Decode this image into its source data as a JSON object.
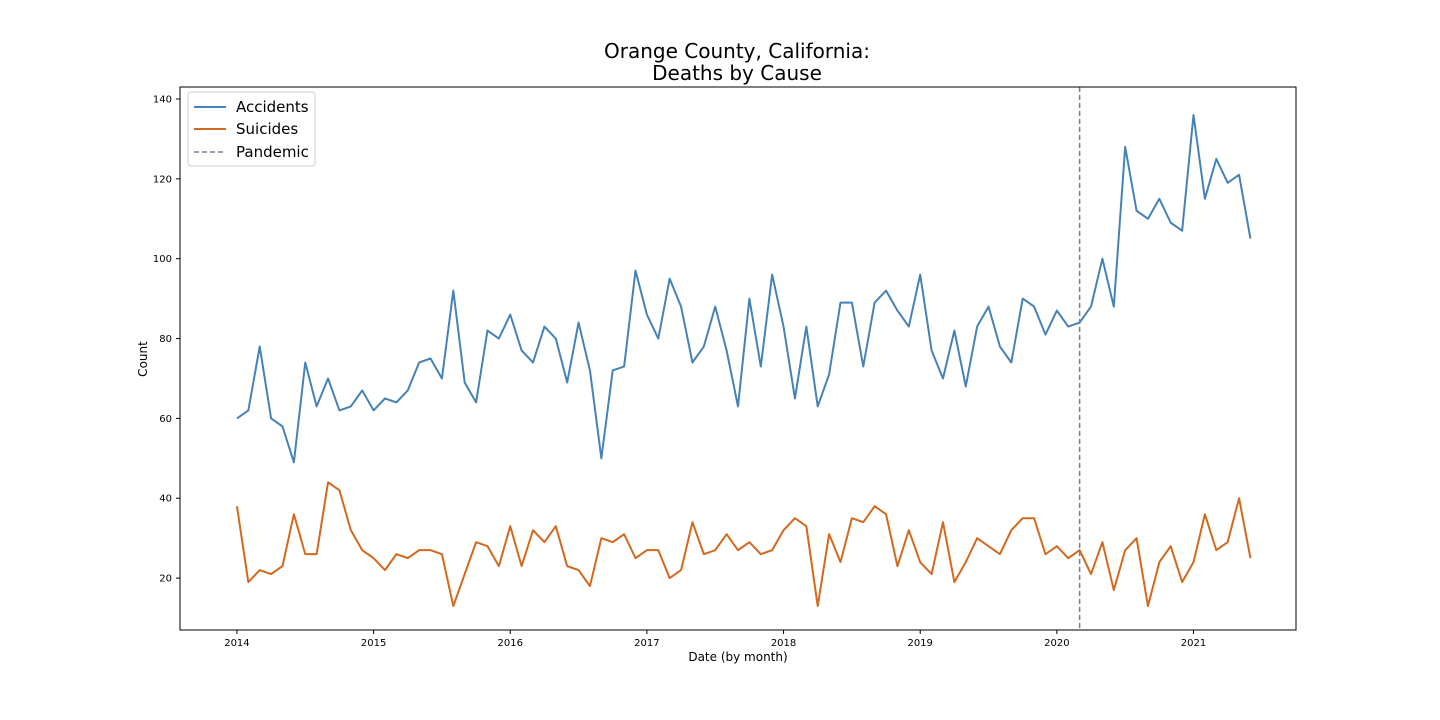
{
  "chart_data": {
    "type": "line",
    "title_line1": "Orange County, California:",
    "title_line2": "Deaths by Cause",
    "xlabel": "Date (by month)",
    "ylabel": "Count",
    "x_axis_type": "date",
    "x_start": "2014-01",
    "x_step": "1 month",
    "xlim": [
      "2013-08",
      "2021-10"
    ],
    "ylim": [
      7,
      143
    ],
    "xticks": [
      "2014",
      "2015",
      "2016",
      "2017",
      "2018",
      "2019",
      "2020",
      "2021"
    ],
    "yticks": [
      20,
      40,
      60,
      80,
      100,
      120,
      140
    ],
    "grid": false,
    "legend_position": "top-left",
    "series": [
      {
        "name": "Accidents",
        "color": "#4682b4",
        "values": [
          60,
          62,
          78,
          60,
          58,
          49,
          74,
          63,
          70,
          62,
          63,
          67,
          62,
          65,
          64,
          67,
          74,
          75,
          70,
          92,
          69,
          64,
          82,
          80,
          86,
          77,
          74,
          83,
          80,
          69,
          84,
          72,
          50,
          72,
          73,
          97,
          86,
          80,
          95,
          88,
          74,
          78,
          88,
          77,
          63,
          90,
          73,
          96,
          83,
          65,
          83,
          63,
          71,
          89,
          89,
          73,
          89,
          92,
          87,
          83,
          96,
          77,
          70,
          82,
          68,
          83,
          88,
          78,
          74,
          90,
          88,
          81,
          87,
          83,
          84,
          88,
          100,
          88,
          128,
          112,
          110,
          115,
          109,
          107,
          136,
          115,
          125,
          119,
          121,
          105
        ]
      },
      {
        "name": "Suicides",
        "color": "#d2691e",
        "values": [
          38,
          19,
          22,
          21,
          23,
          36,
          26,
          26,
          44,
          42,
          32,
          27,
          25,
          22,
          26,
          25,
          27,
          27,
          26,
          13,
          21,
          29,
          28,
          23,
          33,
          23,
          32,
          29,
          33,
          23,
          22,
          18,
          30,
          29,
          31,
          25,
          27,
          27,
          20,
          22,
          34,
          26,
          27,
          31,
          27,
          29,
          26,
          27,
          32,
          35,
          33,
          13,
          31,
          24,
          35,
          34,
          38,
          36,
          23,
          32,
          24,
          21,
          34,
          19,
          24,
          30,
          28,
          26,
          32,
          35,
          35,
          26,
          28,
          25,
          27,
          21,
          29,
          17,
          27,
          30,
          13,
          24,
          28,
          19,
          24,
          36,
          27,
          29,
          40,
          25
        ]
      }
    ],
    "vline": {
      "name": "Pandemic",
      "date": "2020-03",
      "color": "#708090",
      "style": "dashed"
    }
  }
}
